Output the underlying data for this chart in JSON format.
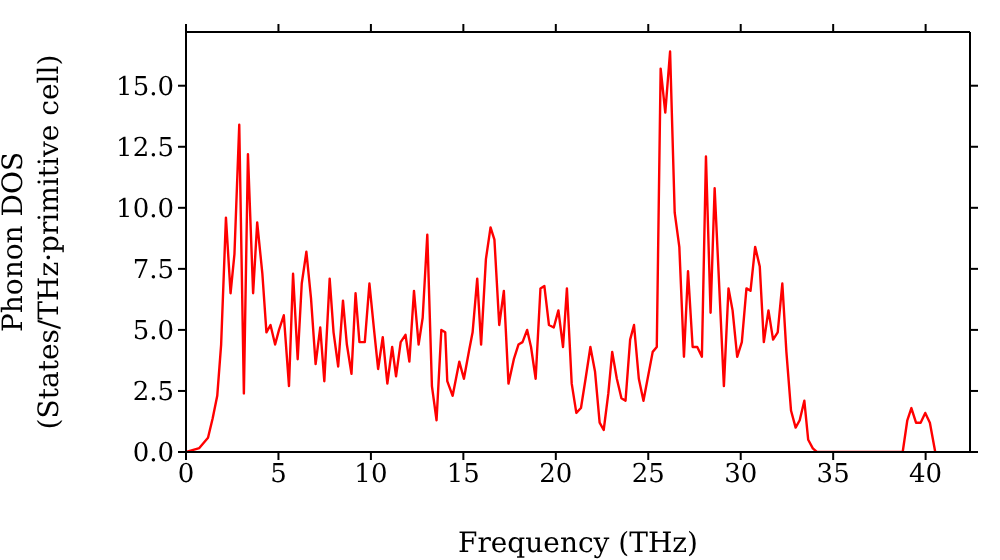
{
  "chart_data": {
    "type": "line",
    "xlabel": "Frequency (THz)",
    "ylabel": "Phonon DOS\n(States/THz·primitive cell)",
    "x": [
      0,
      0.72,
      1.19,
      1.44,
      1.69,
      1.9,
      2.16,
      2.41,
      2.62,
      2.88,
      3.13,
      3.35,
      3.63,
      3.85,
      4.13,
      4.35,
      4.57,
      4.82,
      5.03,
      5.29,
      5.57,
      5.79,
      6.04,
      6.26,
      6.51,
      6.76,
      7.01,
      7.26,
      7.48,
      7.77,
      7.98,
      8.23,
      8.49,
      8.7,
      8.95,
      9.17,
      9.38,
      9.67,
      9.92,
      10.17,
      10.39,
      10.64,
      10.89,
      11.15,
      11.36,
      11.61,
      11.87,
      12.08,
      12.33,
      12.58,
      12.8,
      13.05,
      13.3,
      13.55,
      13.81,
      14.02,
      14.13,
      14.42,
      14.78,
      15.03,
      15.32,
      15.5,
      15.75,
      15.96,
      16.22,
      16.47,
      16.68,
      16.94,
      17.19,
      17.44,
      17.73,
      17.98,
      18.2,
      18.45,
      18.66,
      18.91,
      19.17,
      19.38,
      19.63,
      19.89,
      20.14,
      20.39,
      20.6,
      20.86,
      21.11,
      21.36,
      21.61,
      21.87,
      22.12,
      22.37,
      22.59,
      22.84,
      23.05,
      23.3,
      23.55,
      23.77,
      24.02,
      24.23,
      24.49,
      24.74,
      24.99,
      25.24,
      25.46,
      25.67,
      25.92,
      26.18,
      26.43,
      26.68,
      26.93,
      27.15,
      27.4,
      27.65,
      27.9,
      28.12,
      28.37,
      28.59,
      29.09,
      29.34,
      29.56,
      29.81,
      30.06,
      30.31,
      30.53,
      30.78,
      31.03,
      31.25,
      31.5,
      31.75,
      32.0,
      32.25,
      32.47,
      32.72,
      32.97,
      33.19,
      33.44,
      33.65,
      33.9,
      34.12,
      38.76,
      39.01,
      39.23,
      39.48,
      39.73,
      39.98,
      40.23,
      40.52
    ],
    "series": [
      {
        "color": "#ff0000",
        "values": [
          0,
          0.16,
          0.58,
          1.37,
          2.3,
          4.4,
          9.6,
          6.5,
          8.1,
          13.4,
          2.4,
          12.2,
          6.5,
          9.4,
          7.3,
          4.9,
          5.2,
          4.4,
          5.0,
          5.6,
          2.7,
          7.3,
          3.8,
          6.9,
          8.2,
          6.3,
          3.6,
          5.1,
          2.9,
          7.1,
          4.9,
          3.5,
          6.2,
          4.4,
          3.2,
          6.5,
          4.5,
          4.5,
          6.9,
          5.0,
          3.4,
          4.7,
          2.8,
          4.3,
          3.1,
          4.5,
          4.8,
          3.7,
          6.6,
          4.4,
          5.5,
          8.9,
          2.7,
          1.3,
          5.0,
          4.9,
          2.9,
          2.3,
          3.7,
          3.0,
          4.2,
          4.9,
          7.1,
          4.4,
          7.9,
          9.2,
          8.7,
          5.2,
          6.6,
          2.8,
          3.8,
          4.4,
          4.5,
          5.0,
          4.3,
          3.0,
          6.7,
          6.8,
          5.2,
          5.1,
          5.8,
          4.3,
          6.7,
          2.8,
          1.6,
          1.8,
          3.0,
          4.3,
          3.3,
          1.2,
          0.9,
          2.4,
          4.1,
          3.0,
          2.2,
          2.1,
          4.6,
          5.2,
          3.0,
          2.1,
          3.1,
          4.1,
          4.3,
          15.7,
          13.9,
          16.4,
          9.8,
          8.4,
          3.9,
          7.4,
          4.3,
          4.3,
          3.9,
          12.1,
          5.7,
          10.8,
          2.7,
          6.7,
          5.8,
          3.9,
          4.5,
          6.7,
          6.6,
          8.4,
          7.6,
          4.5,
          5.8,
          4.6,
          4.9,
          6.9,
          4.1,
          1.7,
          1.0,
          1.3,
          2.1,
          0.5,
          0.15,
          0,
          0,
          1.3,
          1.8,
          1.2,
          1.2,
          1.6,
          1.2,
          0
        ]
      }
    ],
    "xlim": [
      0,
      42.4
    ],
    "xticks": [
      0,
      5,
      10,
      15,
      20,
      25,
      30,
      35,
      40
    ],
    "ylim": [
      0,
      17.2
    ],
    "yticks": [
      {
        "value": 0,
        "label": "0.0"
      },
      {
        "value": 2.5,
        "label": "2.5"
      },
      {
        "value": 5,
        "label": "5.0"
      },
      {
        "value": 7.5,
        "label": "7.5"
      },
      {
        "value": 10,
        "label": "10.0"
      },
      {
        "value": 12.5,
        "label": "12.5"
      },
      {
        "value": 15,
        "label": "15.0"
      }
    ],
    "grid": false,
    "legend": false,
    "marker": "none",
    "line_style": "solid"
  }
}
